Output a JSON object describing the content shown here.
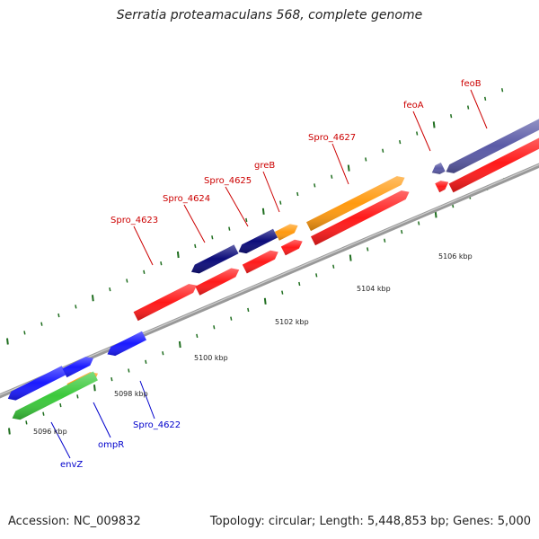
{
  "title": "Serratia proteamaculans 568, complete genome",
  "footer": {
    "accession": "Accession: NC_009832",
    "topology": "Topology: circular; Length: 5,448,853 bp; Genes: 5,000"
  },
  "colors": {
    "red": "#ff1a1a",
    "orange": "#ff9a10",
    "navy": "#0c0c7a",
    "blue": "#1a1aff",
    "green": "#3bc93b",
    "slate": "#5a5aa6",
    "backbone": "#999999",
    "tick": "#1f6e1f",
    "label_red": "#cc0000",
    "label_blue": "#0000cc"
  },
  "ruler_labels": [
    {
      "text": "5096 kbp"
    },
    {
      "text": "5098 kbp"
    },
    {
      "text": "5100 kbp"
    },
    {
      "text": "5102 kbp"
    },
    {
      "text": "5104 kbp"
    },
    {
      "text": "5106 kbp"
    }
  ],
  "gene_labels": [
    {
      "text": "Spro_4623",
      "color": "label_red"
    },
    {
      "text": "Spro_4624",
      "color": "label_red"
    },
    {
      "text": "Spro_4625",
      "color": "label_red"
    },
    {
      "text": "greB",
      "color": "label_red"
    },
    {
      "text": "Spro_4627",
      "color": "label_red"
    },
    {
      "text": "feoA",
      "color": "label_red"
    },
    {
      "text": "feoB",
      "color": "label_red"
    },
    {
      "text": "Spro_4622",
      "color": "label_blue"
    },
    {
      "text": "ompR",
      "color": "label_blue"
    },
    {
      "text": "envZ",
      "color": "label_blue"
    }
  ]
}
